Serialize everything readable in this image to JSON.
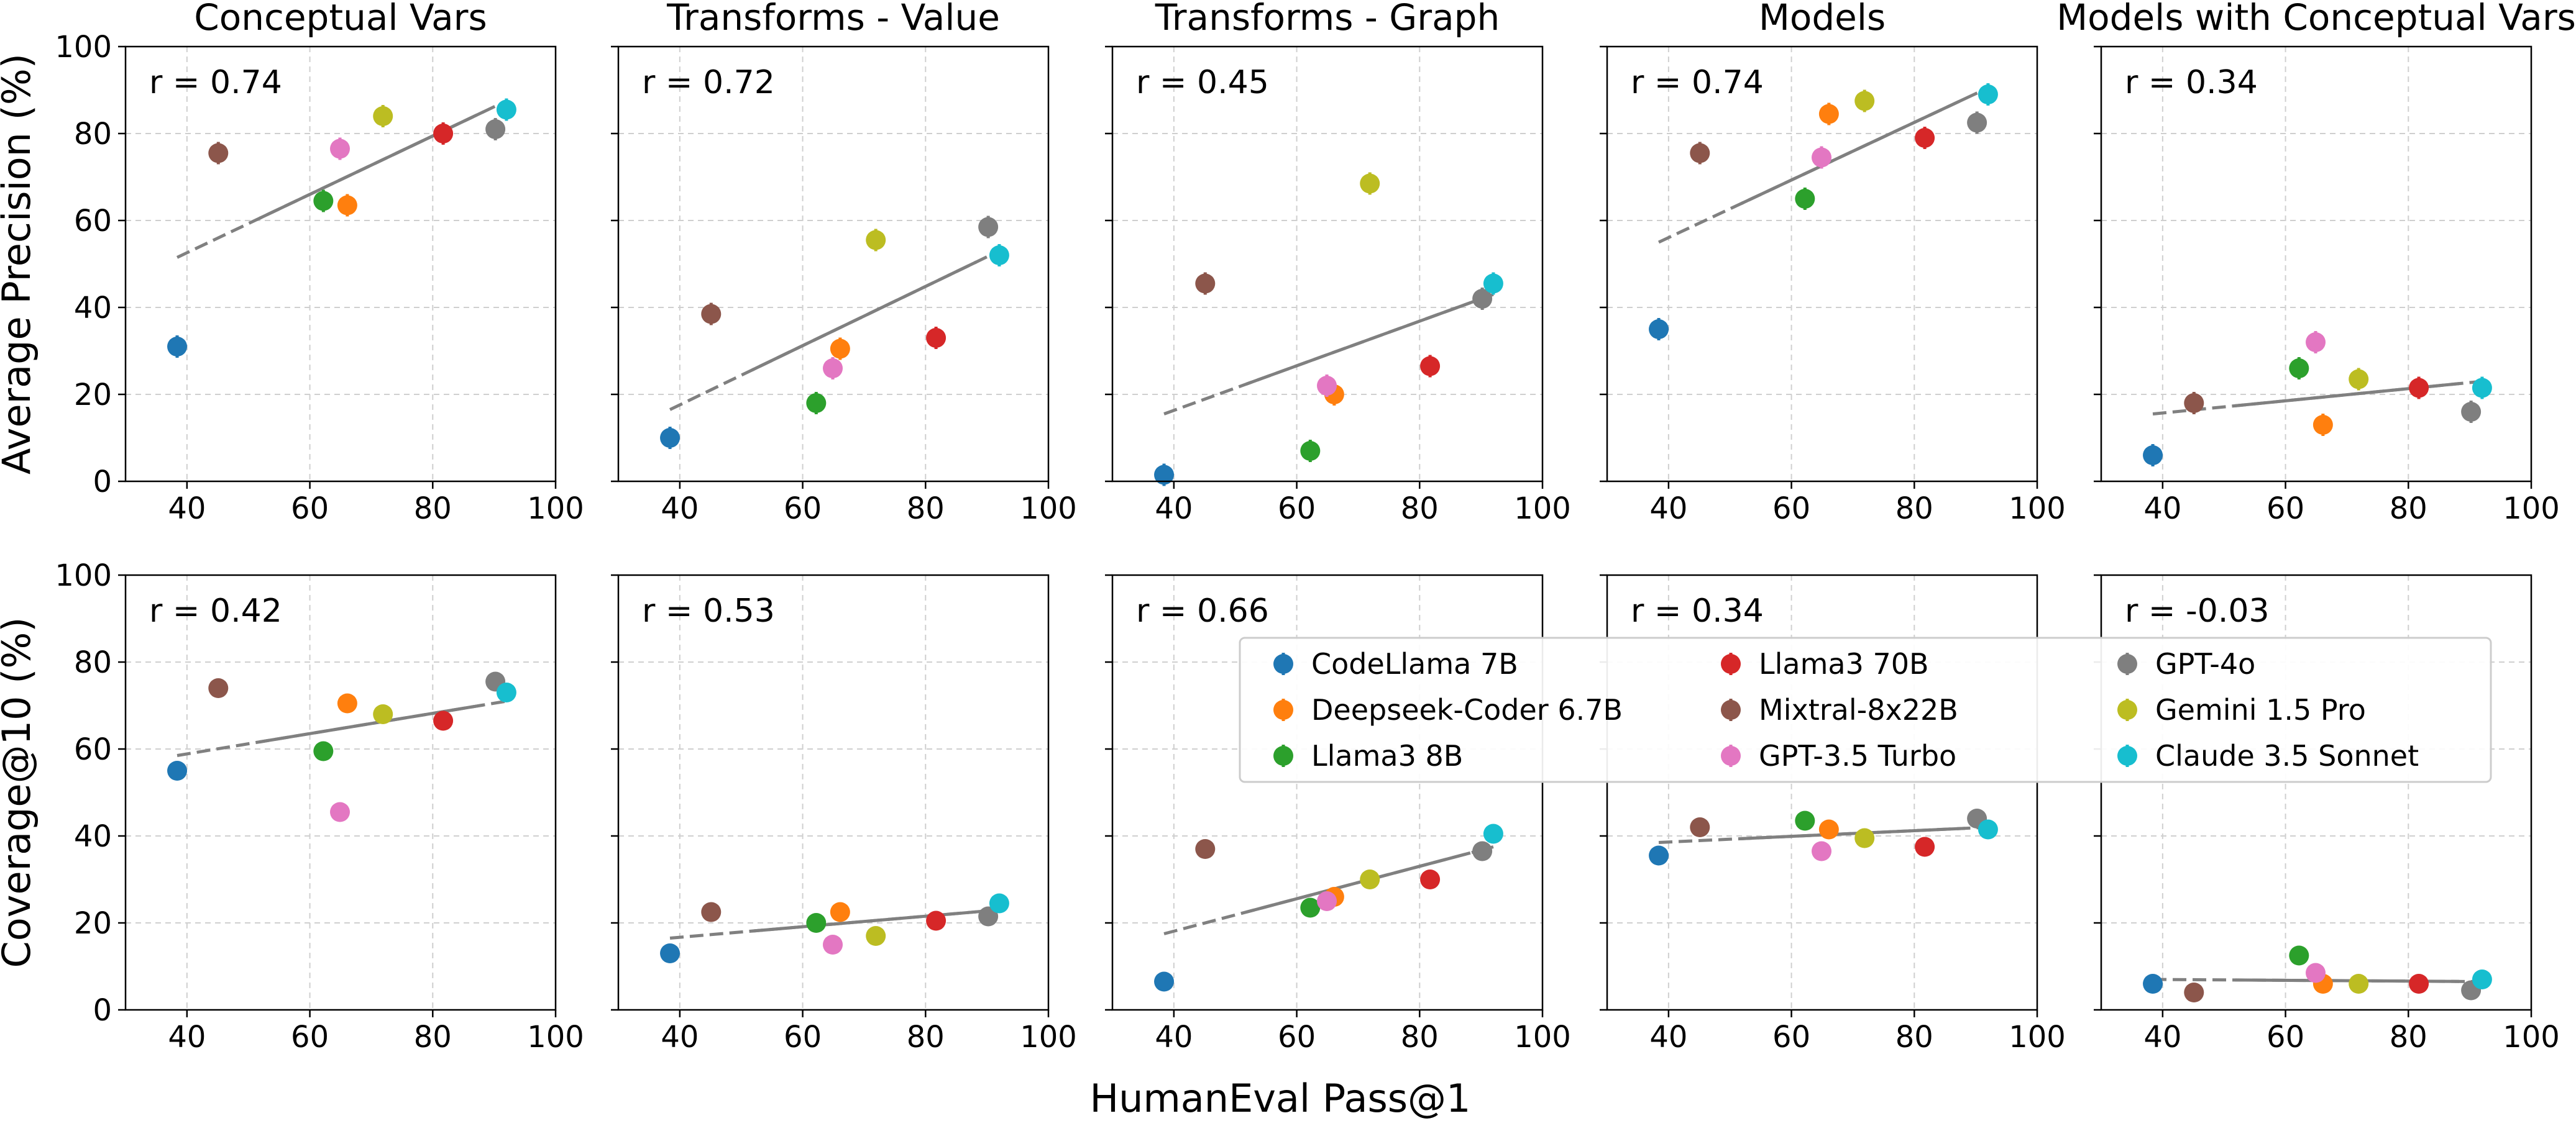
{
  "chart_data": {
    "type": "scatter",
    "x_label": "HumanEval Pass@1",
    "y_labels": [
      "Average Precision (%)",
      "Coverage@10 (%)"
    ],
    "column_titles": [
      "Conceptual Vars",
      "Transforms - Value",
      "Transforms - Graph",
      "Models",
      "Models with Conceptual Vars"
    ],
    "xlim": [
      30,
      100
    ],
    "ylim": [
      0,
      100
    ],
    "x_ticks": [
      40,
      60,
      80,
      100
    ],
    "y_ticks": [
      0,
      20,
      40,
      60,
      80,
      100
    ],
    "grid": true,
    "models": [
      {
        "name": "CodeLlama 7B",
        "x": 38.4,
        "color": "#1f77b4"
      },
      {
        "name": "Deepseek-Coder 6.7B",
        "x": 66.1,
        "color": "#ff7f0e"
      },
      {
        "name": "Llama3 8B",
        "x": 62.2,
        "color": "#2ca02c"
      },
      {
        "name": "Llama3 70B",
        "x": 81.7,
        "color": "#d62728"
      },
      {
        "name": "Mixtral-8x22B",
        "x": 45.1,
        "color": "#8c564b"
      },
      {
        "name": "GPT-3.5 Turbo",
        "x": 64.9,
        "color": "#e377c2"
      },
      {
        "name": "GPT-4o",
        "x": 90.2,
        "color": "#7f7f7f"
      },
      {
        "name": "Gemini 1.5 Pro",
        "x": 71.9,
        "color": "#bcbd22"
      },
      {
        "name": "Claude 3.5 Sonnet",
        "x": 92.0,
        "color": "#17becf"
      }
    ],
    "panels": [
      {
        "row": 0,
        "col": 0,
        "r_label": "r = 0.74",
        "values": [
          31,
          63.5,
          64.5,
          80,
          75.5,
          76.5,
          81,
          84,
          85.5
        ],
        "fit": [
          51.5,
          87.5
        ]
      },
      {
        "row": 0,
        "col": 1,
        "r_label": "r = 0.72",
        "values": [
          10,
          30.5,
          18,
          33,
          38.5,
          26,
          58.5,
          55.5,
          52
        ],
        "fit": [
          16.5,
          53
        ]
      },
      {
        "row": 0,
        "col": 2,
        "r_label": "r = 0.45",
        "values": [
          1.5,
          20,
          7,
          26.5,
          45.5,
          22,
          42,
          68.5,
          45.5
        ],
        "fit": [
          15.5,
          43
        ]
      },
      {
        "row": 0,
        "col": 3,
        "r_label": "r = 0.74",
        "values": [
          35,
          84.5,
          65,
          79,
          75.5,
          74.5,
          82.5,
          87.5,
          89
        ],
        "fit": [
          55,
          90.5
        ]
      },
      {
        "row": 0,
        "col": 4,
        "r_label": "r = 0.34",
        "values": [
          6,
          13,
          26,
          21.5,
          18,
          32,
          16,
          23.5,
          21.5
        ],
        "fit": [
          15.5,
          23
        ]
      },
      {
        "row": 1,
        "col": 0,
        "r_label": "r = 0.42",
        "values": [
          55,
          70.5,
          59.5,
          66.5,
          74,
          45.5,
          75.5,
          68,
          73
        ],
        "fit": [
          58.5,
          71
        ]
      },
      {
        "row": 1,
        "col": 1,
        "r_label": "r = 0.53",
        "values": [
          13,
          22.5,
          20,
          20.5,
          22.5,
          15,
          21.5,
          17,
          24.5
        ],
        "fit": [
          16.5,
          23
        ]
      },
      {
        "row": 1,
        "col": 2,
        "r_label": "r = 0.66",
        "values": [
          6.5,
          26,
          23.5,
          30,
          37,
          25,
          36.5,
          30,
          40.5
        ],
        "fit": [
          17.5,
          37.5
        ]
      },
      {
        "row": 1,
        "col": 3,
        "r_label": "r = 0.34",
        "values": [
          35.5,
          41.5,
          43.5,
          37.5,
          42,
          36.5,
          44,
          39.5,
          41.5
        ],
        "fit": [
          38.5,
          42
        ]
      },
      {
        "row": 1,
        "col": 4,
        "r_label": "r = -0.03",
        "values": [
          6,
          6,
          12.5,
          6,
          4,
          8.5,
          4.5,
          6,
          7
        ],
        "fit": [
          7,
          6.5
        ]
      }
    ]
  }
}
